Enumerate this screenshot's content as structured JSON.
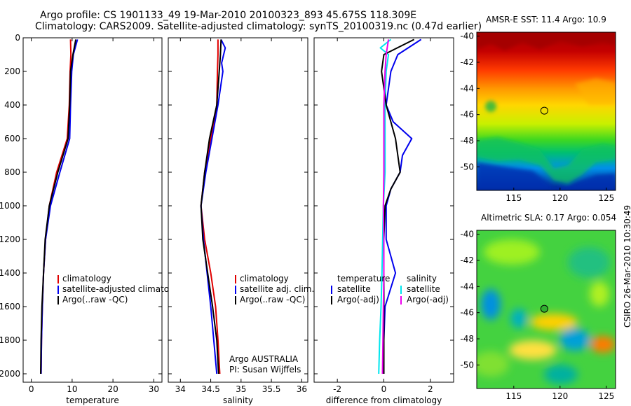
{
  "header": {
    "line1": "Argo profile: CS 1901133_49 19-Mar-2010 20100323_893 45.675S 118.309E",
    "line2": "Climatology: CARS2009. Satellite-adjusted climatology: synTS_20100319.nc (0.47d earlier)"
  },
  "stamp": "CSIRO 26-Mar-2010 10:30:49",
  "chart_data": [
    {
      "type": "line",
      "id": "temperature",
      "xlabel": "temperature",
      "xlim": [
        -2,
        32
      ],
      "xticks": [
        0,
        10,
        20,
        30
      ],
      "ylim": [
        0,
        2050
      ],
      "yticks": [
        0,
        200,
        400,
        600,
        800,
        1000,
        1200,
        1400,
        1600,
        1800,
        2000
      ],
      "ylabel_shown": true,
      "legend": {
        "position": "lower-right",
        "entries": [
          {
            "label": "climatology",
            "color": "#e00000"
          },
          {
            "label": "satellite-adjusted climatology",
            "color": "#0000ee"
          },
          {
            "label": "Argo(..raw -QC)",
            "color": "#000000"
          }
        ]
      },
      "series": [
        {
          "name": "climatology",
          "color": "#e00000",
          "depth": [
            10,
            100,
            200,
            400,
            600,
            800,
            1000,
            1200,
            1400,
            1600,
            1800,
            2000
          ],
          "values": [
            9.6,
            9.7,
            9.5,
            9.3,
            8.8,
            6.2,
            4.4,
            3.5,
            3.0,
            2.7,
            2.5,
            2.4
          ]
        },
        {
          "name": "satellite-adjusted climatology",
          "color": "#0000ee",
          "depth": [
            10,
            100,
            200,
            400,
            600,
            800,
            1000,
            1200,
            1400,
            1600,
            1800,
            2000
          ],
          "values": [
            11.3,
            10.3,
            9.9,
            9.6,
            9.4,
            7.0,
            4.7,
            3.5,
            3.0,
            2.7,
            2.5,
            2.4
          ]
        },
        {
          "name": "Argo(..raw -QC)",
          "color": "#000000",
          "depth": [
            10,
            100,
            200,
            400,
            600,
            800,
            1000,
            1200,
            1400,
            1600,
            1800,
            2000
          ],
          "values": [
            10.9,
            10.2,
            9.6,
            9.4,
            9.0,
            6.5,
            4.4,
            3.4,
            3.0,
            2.6,
            2.4,
            2.3
          ]
        }
      ]
    },
    {
      "type": "line",
      "id": "salinity",
      "xlabel": "salinity",
      "xlim": [
        33.8,
        36.1
      ],
      "xticks": [
        34,
        34.5,
        35,
        35.5,
        36
      ],
      "ylim": [
        0,
        2050
      ],
      "yticks": [
        0,
        200,
        400,
        600,
        800,
        1000,
        1200,
        1400,
        1600,
        1800,
        2000
      ],
      "ylabel_shown": false,
      "legend": {
        "position": "lower-right",
        "entries": [
          {
            "label": "climatology",
            "color": "#e00000"
          },
          {
            "label": "satellite adj. clim.",
            "color": "#0000ee"
          },
          {
            "label": "Argo(..raw -QC)",
            "color": "#000000"
          }
        ]
      },
      "annotation": [
        "Argo AUSTRALIA",
        "PI: Susan Wijffels"
      ],
      "series": [
        {
          "name": "climatology",
          "color": "#e00000",
          "depth": [
            10,
            100,
            200,
            400,
            600,
            800,
            1000,
            1200,
            1400,
            1600,
            1800,
            2000
          ],
          "values": [
            34.62,
            34.62,
            34.61,
            34.6,
            34.5,
            34.4,
            34.34,
            34.4,
            34.5,
            34.58,
            34.62,
            34.65
          ]
        },
        {
          "name": "satellite adj. clim.",
          "color": "#0000ee",
          "depth": [
            10,
            60,
            150,
            200,
            400,
            600,
            800,
            1000,
            1200,
            1400,
            1600,
            1800,
            2000
          ],
          "values": [
            34.67,
            34.74,
            34.68,
            34.7,
            34.62,
            34.52,
            34.42,
            34.34,
            34.38,
            34.44,
            34.5,
            34.55,
            34.6
          ]
        },
        {
          "name": "Argo(..raw -QC)",
          "color": "#000000",
          "depth": [
            10,
            100,
            200,
            400,
            600,
            800,
            1000,
            1200,
            1400,
            1600,
            1800,
            2000
          ],
          "values": [
            34.67,
            34.66,
            34.64,
            34.6,
            34.48,
            34.4,
            34.34,
            34.37,
            34.45,
            34.53,
            34.6,
            34.63
          ]
        }
      ]
    },
    {
      "type": "line",
      "id": "difference",
      "xlabel": "difference from climatology",
      "xlim": [
        -3,
        3
      ],
      "xticks": [
        -2,
        0,
        2
      ],
      "ylim": [
        0,
        2050
      ],
      "yticks": [
        0,
        200,
        400,
        600,
        800,
        1000,
        1200,
        1400,
        1600,
        1800,
        2000
      ],
      "ylabel_shown": false,
      "legend": {
        "position": "lower-right",
        "entries": [
          {
            "label": "temperature",
            "color": null
          },
          {
            "label": "salinity",
            "color": null
          },
          {
            "label": "satellite",
            "color": "#0000ee"
          },
          {
            "label": "satellite",
            "color": "#00e5ee"
          },
          {
            "label": "Argo(-adj)",
            "color": "#000000"
          },
          {
            "label": "Argo(-adj)",
            "color": "#ee00ee"
          }
        ]
      },
      "series": [
        {
          "name": "temperature satellite",
          "color": "#0000ee",
          "depth": [
            10,
            100,
            200,
            400,
            500,
            600,
            700,
            800,
            900,
            1000,
            1200,
            1400,
            1600,
            1800,
            2000
          ],
          "values": [
            1.6,
            0.6,
            0.3,
            0.1,
            0.4,
            1.2,
            0.8,
            0.7,
            0.3,
            0.1,
            0.1,
            0.5,
            0.05,
            0.0,
            0.0
          ]
        },
        {
          "name": "salinity satellite",
          "color": "#00e5ee",
          "depth": [
            10,
            60,
            100,
            200,
            400,
            600,
            800,
            1000,
            1200,
            1400,
            1600,
            1800,
            2000
          ],
          "values": [
            0.3,
            -0.15,
            0.2,
            0.1,
            0.05,
            0.05,
            0.05,
            -0.02,
            -0.05,
            -0.08,
            -0.12,
            -0.18,
            -0.22
          ]
        },
        {
          "name": "temperature Argo(-adj)",
          "color": "#000000",
          "depth": [
            10,
            100,
            200,
            400,
            600,
            800,
            900,
            1000,
            1200,
            1400,
            1600,
            1800,
            2000
          ],
          "values": [
            1.3,
            0.0,
            -0.1,
            0.1,
            0.5,
            0.7,
            0.3,
            0.05,
            0.0,
            0.0,
            0.0,
            0.0,
            0.0
          ]
        },
        {
          "name": "salinity Argo(-adj)",
          "color": "#ee00ee",
          "depth": [
            10,
            100,
            200,
            400,
            600,
            800,
            1000,
            1200,
            1400,
            1600,
            1800,
            2000
          ],
          "values": [
            0.2,
            0.1,
            0.05,
            0.0,
            0.0,
            0.0,
            -0.02,
            0.0,
            0.0,
            -0.02,
            -0.04,
            -0.06
          ]
        }
      ]
    },
    {
      "type": "heatmap",
      "id": "sst-map",
      "title": "AMSR-E SST: 11.4  Argo: 10.9",
      "xlim": [
        111,
        126
      ],
      "ylim": [
        -51.8,
        -39.7
      ],
      "xticks": [
        115,
        120,
        125
      ],
      "yticks": [
        -40,
        -42,
        -44,
        -46,
        -48,
        -50
      ],
      "marker": {
        "lon": 118.3,
        "lat": -45.7
      }
    },
    {
      "type": "heatmap",
      "id": "sla-map",
      "title": "Altimetric SLA: 0.17  Argo: 0.054",
      "xlim": [
        111,
        126
      ],
      "ylim": [
        -51.8,
        -39.7
      ],
      "xticks": [
        115,
        120,
        125
      ],
      "yticks": [
        -40,
        -42,
        -44,
        -46,
        -48,
        -50
      ],
      "marker": {
        "lon": 118.3,
        "lat": -45.7
      }
    }
  ]
}
